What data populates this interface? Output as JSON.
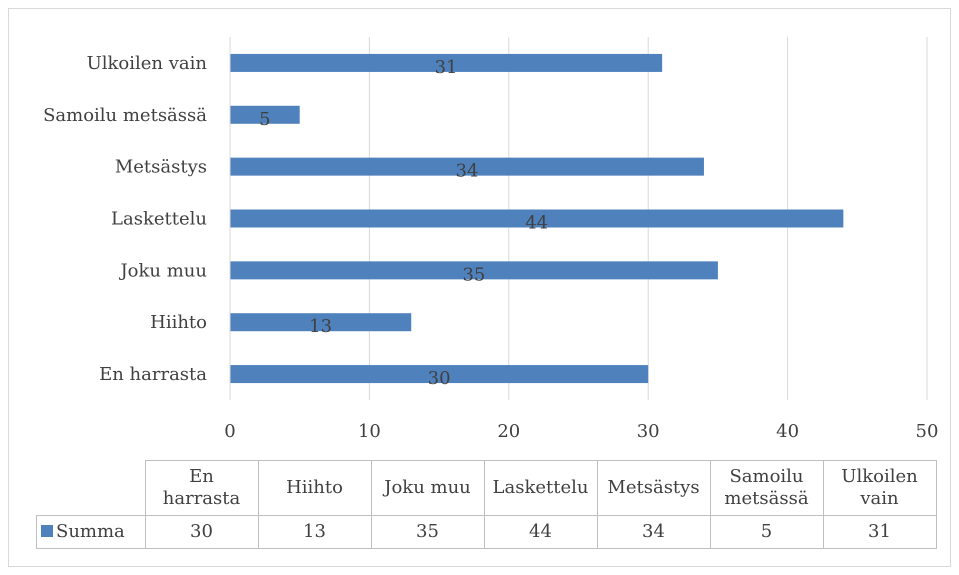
{
  "chart_data": {
    "type": "bar",
    "orientation": "horizontal",
    "categories": [
      "En harrasta",
      "Hiihto",
      "Joku muu",
      "Laskettelu",
      "Metsästys",
      "Samoilu metsässä",
      "Ulkoilen vain"
    ],
    "series": [
      {
        "name": "Summa",
        "values": [
          30,
          13,
          35,
          44,
          34,
          5,
          31
        ],
        "color": "#4f81bd"
      }
    ],
    "xlim": [
      0,
      50
    ],
    "x_ticks": [
      "0",
      "10",
      "20",
      "30",
      "40",
      "50"
    ],
    "grid": "vertical",
    "data_labels": true,
    "data_table": {
      "headers": [
        [
          "En",
          "harrasta"
        ],
        [
          "Hiihto"
        ],
        [
          "Joku muu"
        ],
        [
          "Laskettelu"
        ],
        [
          "Metsästys"
        ],
        [
          "Samoilu",
          "metsässä"
        ],
        [
          "Ulkoilen",
          "vain"
        ]
      ],
      "row_label": "Summa",
      "values": [
        "30",
        "13",
        "35",
        "44",
        "34",
        "5",
        "31"
      ]
    }
  }
}
